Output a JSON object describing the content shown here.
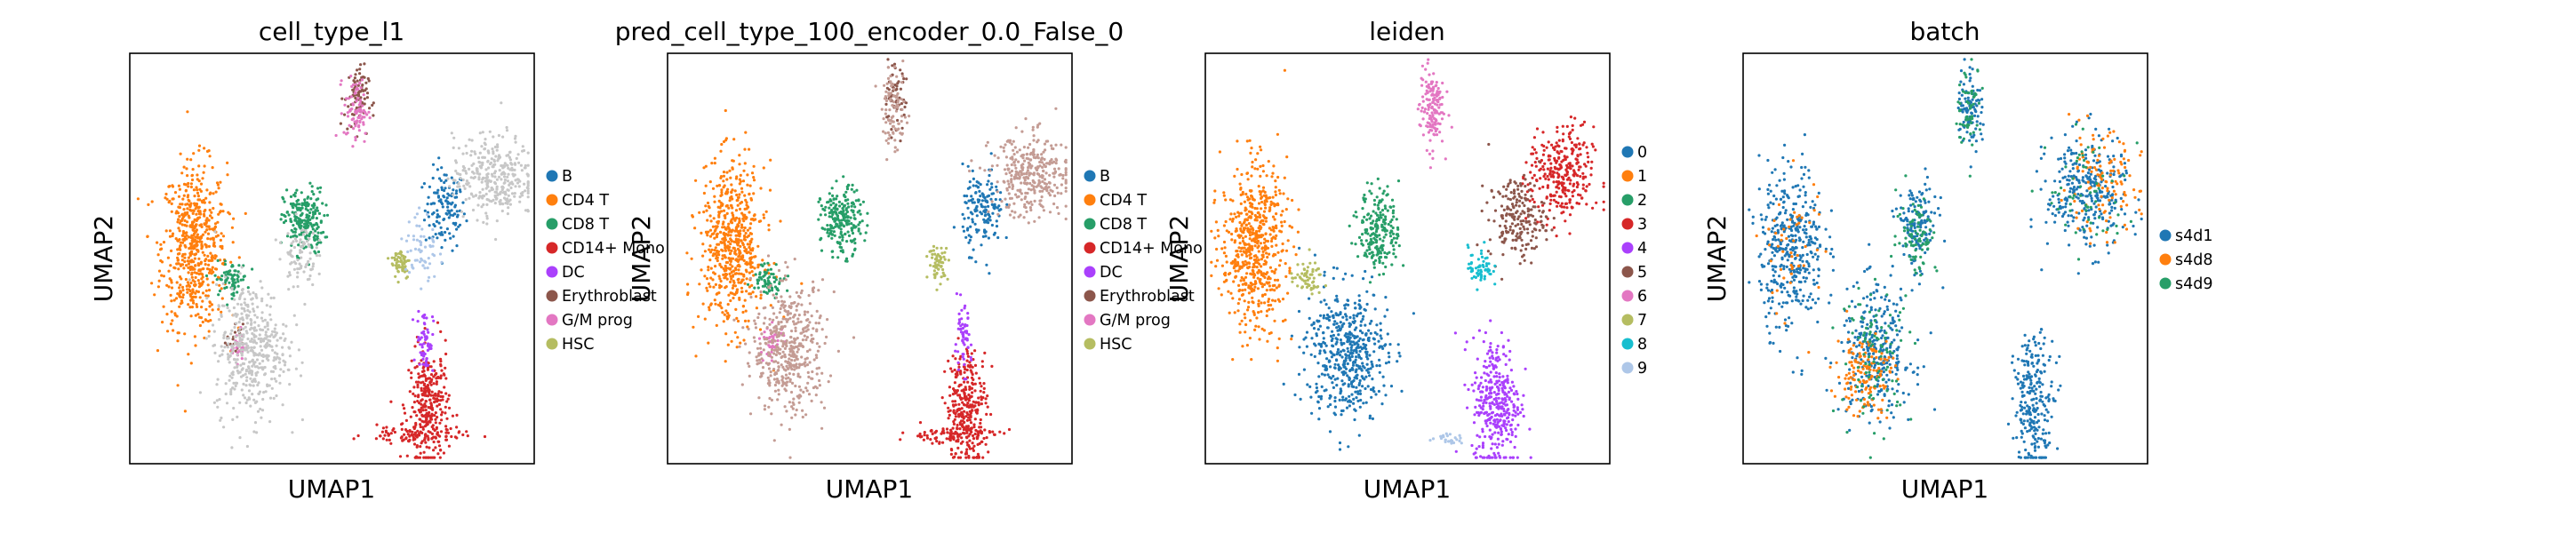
{
  "figure": {
    "panels": [
      {
        "title": "cell_type_l1",
        "xlabel": "UMAP1",
        "ylabel": "UMAP2",
        "legend": [
          {
            "label": "B",
            "color": "#1f77b4"
          },
          {
            "label": "CD4 T",
            "color": "#ff7f0e"
          },
          {
            "label": "CD8 T",
            "color": "#279e68"
          },
          {
            "label": "CD14+ Mono",
            "color": "#d62728"
          },
          {
            "label": "DC",
            "color": "#aa40fc"
          },
          {
            "label": "Erythroblast",
            "color": "#8c564b"
          },
          {
            "label": "G/M prog",
            "color": "#e377c2"
          },
          {
            "label": "HSC",
            "color": "#b5bd61"
          }
        ]
      },
      {
        "title": "pred_cell_type_100_encoder_0.0_False_0",
        "xlabel": "UMAP1",
        "ylabel": "UMAP2",
        "legend": [
          {
            "label": "B",
            "color": "#1f77b4"
          },
          {
            "label": "CD4 T",
            "color": "#ff7f0e"
          },
          {
            "label": "CD8 T",
            "color": "#279e68"
          },
          {
            "label": "CD14+ Mono",
            "color": "#d62728"
          },
          {
            "label": "DC",
            "color": "#aa40fc"
          },
          {
            "label": "Erythroblast",
            "color": "#8c564b"
          },
          {
            "label": "G/M prog",
            "color": "#e377c2"
          },
          {
            "label": "HSC",
            "color": "#b5bd61"
          }
        ]
      },
      {
        "title": "leiden",
        "xlabel": "UMAP1",
        "ylabel": "UMAP2",
        "legend": [
          {
            "label": "0",
            "color": "#1f77b4"
          },
          {
            "label": "1",
            "color": "#ff7f0e"
          },
          {
            "label": "2",
            "color": "#279e68"
          },
          {
            "label": "3",
            "color": "#d62728"
          },
          {
            "label": "4",
            "color": "#aa40fc"
          },
          {
            "label": "5",
            "color": "#8c564b"
          },
          {
            "label": "6",
            "color": "#e377c2"
          },
          {
            "label": "7",
            "color": "#b5bd61"
          },
          {
            "label": "8",
            "color": "#17becf"
          },
          {
            "label": "9",
            "color": "#aec7e8"
          }
        ]
      },
      {
        "title": "batch",
        "xlabel": "UMAP1",
        "ylabel": "UMAP2",
        "legend": [
          {
            "label": "s4d1",
            "color": "#1f77b4"
          },
          {
            "label": "s4d8",
            "color": "#ff7f0e"
          },
          {
            "label": "s4d9",
            "color": "#279e68"
          }
        ]
      }
    ]
  },
  "chart_data": [
    {
      "type": "scatter",
      "title": "cell_type_l1",
      "xlabel": "UMAP1",
      "ylabel": "UMAP2",
      "ticks": "none",
      "grid": false,
      "legend_placement": "right-outside",
      "series": [
        {
          "name": "B",
          "color": "#1f77b4",
          "clusters": [
            {
              "x": 0.78,
              "y": 0.62,
              "sx": 0.025,
              "sy": 0.05,
              "n": 130
            }
          ]
        },
        {
          "name": "CD4 T",
          "color": "#ff7f0e",
          "clusters": [
            {
              "x": 0.16,
              "y": 0.53,
              "sx": 0.04,
              "sy": 0.1,
              "n": 600
            }
          ]
        },
        {
          "name": "CD8 T",
          "color": "#279e68",
          "clusters": [
            {
              "x": 0.43,
              "y": 0.59,
              "sx": 0.025,
              "sy": 0.04,
              "n": 220
            },
            {
              "x": 0.25,
              "y": 0.45,
              "sx": 0.02,
              "sy": 0.02,
              "n": 70
            }
          ]
        },
        {
          "name": "CD14+ Mono",
          "color": "#d62728",
          "clusters": [
            {
              "x": 0.74,
              "y": 0.14,
              "sx": 0.025,
              "sy": 0.07,
              "n": 300
            },
            {
              "x": 0.7,
              "y": 0.07,
              "sx": 0.06,
              "sy": 0.01,
              "n": 90
            }
          ]
        },
        {
          "name": "DC",
          "color": "#aa40fc",
          "clusters": [
            {
              "x": 0.73,
              "y": 0.3,
              "sx": 0.01,
              "sy": 0.04,
              "n": 60
            }
          ]
        },
        {
          "name": "Erythroblast",
          "color": "#8c564b",
          "clusters": [
            {
              "x": 0.56,
              "y": 0.89,
              "sx": 0.015,
              "sy": 0.04,
              "n": 80
            },
            {
              "x": 0.26,
              "y": 0.3,
              "sx": 0.01,
              "sy": 0.02,
              "n": 20
            }
          ]
        },
        {
          "name": "G/M prog",
          "color": "#e377c2",
          "clusters": [
            {
              "x": 0.56,
              "y": 0.86,
              "sx": 0.015,
              "sy": 0.04,
              "n": 80
            },
            {
              "x": 0.27,
              "y": 0.29,
              "sx": 0.01,
              "sy": 0.02,
              "n": 30
            }
          ]
        },
        {
          "name": "HSC",
          "color": "#b5bd61",
          "clusters": [
            {
              "x": 0.67,
              "y": 0.49,
              "sx": 0.012,
              "sy": 0.02,
              "n": 60
            }
          ]
        },
        {
          "name": "",
          "color": "#c7c7c7",
          "clusters": [
            {
              "x": 0.3,
              "y": 0.28,
              "sx": 0.045,
              "sy": 0.08,
              "n": 450
            },
            {
              "x": 0.9,
              "y": 0.7,
              "sx": 0.05,
              "sy": 0.05,
              "n": 330
            },
            {
              "x": 0.42,
              "y": 0.51,
              "sx": 0.02,
              "sy": 0.04,
              "n": 80
            }
          ]
        },
        {
          "name": "",
          "color": "#aec7e8",
          "clusters": [
            {
              "x": 0.72,
              "y": 0.52,
              "sx": 0.02,
              "sy": 0.05,
              "n": 60
            }
          ]
        }
      ]
    },
    {
      "type": "scatter",
      "title": "pred_cell_type_100_encoder_0.0_False_0",
      "xlabel": "UMAP1",
      "ylabel": "UMAP2",
      "ticks": "none",
      "grid": false,
      "legend_placement": "right-outside",
      "series": [
        {
          "name": "B",
          "color": "#1f77b4",
          "clusters": [
            {
              "x": 0.78,
              "y": 0.62,
              "sx": 0.025,
              "sy": 0.05,
              "n": 150
            }
          ]
        },
        {
          "name": "CD4 T",
          "color": "#ff7f0e",
          "clusters": [
            {
              "x": 0.16,
              "y": 0.53,
              "sx": 0.04,
              "sy": 0.1,
              "n": 600
            }
          ]
        },
        {
          "name": "CD8 T",
          "color": "#279e68",
          "clusters": [
            {
              "x": 0.43,
              "y": 0.59,
              "sx": 0.025,
              "sy": 0.04,
              "n": 220
            },
            {
              "x": 0.25,
              "y": 0.45,
              "sx": 0.02,
              "sy": 0.02,
              "n": 70
            }
          ]
        },
        {
          "name": "CD14+ Mono",
          "color": "#d62728",
          "clusters": [
            {
              "x": 0.74,
              "y": 0.14,
              "sx": 0.025,
              "sy": 0.07,
              "n": 300
            },
            {
              "x": 0.7,
              "y": 0.07,
              "sx": 0.06,
              "sy": 0.01,
              "n": 90
            }
          ]
        },
        {
          "name": "DC",
          "color": "#aa40fc",
          "clusters": [
            {
              "x": 0.73,
              "y": 0.3,
              "sx": 0.01,
              "sy": 0.04,
              "n": 60
            }
          ]
        },
        {
          "name": "Erythroblast",
          "color": "#8c564b",
          "clusters": [
            {
              "x": 0.56,
              "y": 0.89,
              "sx": 0.015,
              "sy": 0.04,
              "n": 60
            }
          ]
        },
        {
          "name": "G/M prog",
          "color": "#e377c2",
          "clusters": [
            {
              "x": 0.26,
              "y": 0.3,
              "sx": 0.015,
              "sy": 0.02,
              "n": 40
            }
          ]
        },
        {
          "name": "HSC",
          "color": "#b5bd61",
          "clusters": [
            {
              "x": 0.67,
              "y": 0.49,
              "sx": 0.012,
              "sy": 0.02,
              "n": 60
            }
          ]
        },
        {
          "name": "",
          "color": "#c49c94",
          "clusters": [
            {
              "x": 0.3,
              "y": 0.28,
              "sx": 0.045,
              "sy": 0.08,
              "n": 450
            },
            {
              "x": 0.9,
              "y": 0.7,
              "sx": 0.05,
              "sy": 0.05,
              "n": 330
            },
            {
              "x": 0.56,
              "y": 0.86,
              "sx": 0.015,
              "sy": 0.05,
              "n": 90
            }
          ]
        }
      ]
    },
    {
      "type": "scatter",
      "title": "leiden",
      "xlabel": "UMAP1",
      "ylabel": "UMAP2",
      "ticks": "none",
      "grid": false,
      "legend_placement": "right-outside",
      "series": [
        {
          "name": "0",
          "color": "#1f77b4",
          "clusters": [
            {
              "x": 0.35,
              "y": 0.27,
              "sx": 0.05,
              "sy": 0.08,
              "n": 500
            }
          ]
        },
        {
          "name": "1",
          "color": "#ff7f0e",
          "clusters": [
            {
              "x": 0.12,
              "y": 0.53,
              "sx": 0.04,
              "sy": 0.1,
              "n": 600
            }
          ]
        },
        {
          "name": "2",
          "color": "#279e68",
          "clusters": [
            {
              "x": 0.43,
              "y": 0.57,
              "sx": 0.025,
              "sy": 0.05,
              "n": 220
            }
          ]
        },
        {
          "name": "3",
          "color": "#d62728",
          "clusters": [
            {
              "x": 0.88,
              "y": 0.7,
              "sx": 0.04,
              "sy": 0.06,
              "n": 300
            }
          ]
        },
        {
          "name": "4",
          "color": "#aa40fc",
          "clusters": [
            {
              "x": 0.72,
              "y": 0.15,
              "sx": 0.03,
              "sy": 0.08,
              "n": 350
            }
          ]
        },
        {
          "name": "5",
          "color": "#8c564b",
          "clusters": [
            {
              "x": 0.77,
              "y": 0.6,
              "sx": 0.035,
              "sy": 0.05,
              "n": 200
            }
          ]
        },
        {
          "name": "6",
          "color": "#e377c2",
          "clusters": [
            {
              "x": 0.56,
              "y": 0.87,
              "sx": 0.015,
              "sy": 0.05,
              "n": 150
            }
          ]
        },
        {
          "name": "7",
          "color": "#b5bd61",
          "clusters": [
            {
              "x": 0.25,
              "y": 0.45,
              "sx": 0.02,
              "sy": 0.02,
              "n": 60
            }
          ]
        },
        {
          "name": "8",
          "color": "#17becf",
          "clusters": [
            {
              "x": 0.68,
              "y": 0.48,
              "sx": 0.015,
              "sy": 0.025,
              "n": 60
            }
          ]
        },
        {
          "name": "9",
          "color": "#aec7e8",
          "clusters": [
            {
              "x": 0.6,
              "y": 0.06,
              "sx": 0.02,
              "sy": 0.006,
              "n": 25
            }
          ]
        }
      ]
    },
    {
      "type": "scatter",
      "title": "batch",
      "xlabel": "UMAP1",
      "ylabel": "UMAP2",
      "ticks": "none",
      "grid": false,
      "legend_placement": "right-outside",
      "series": [
        {
          "name": "s4d1",
          "color": "#1f77b4",
          "clusters": [
            {
              "x": 0.12,
              "y": 0.53,
              "sx": 0.04,
              "sy": 0.1,
              "n": 400
            },
            {
              "x": 0.33,
              "y": 0.27,
              "sx": 0.045,
              "sy": 0.08,
              "n": 300
            },
            {
              "x": 0.43,
              "y": 0.58,
              "sx": 0.025,
              "sy": 0.05,
              "n": 150
            },
            {
              "x": 0.85,
              "y": 0.66,
              "sx": 0.05,
              "sy": 0.07,
              "n": 300
            },
            {
              "x": 0.72,
              "y": 0.15,
              "sx": 0.025,
              "sy": 0.08,
              "n": 250
            },
            {
              "x": 0.56,
              "y": 0.87,
              "sx": 0.015,
              "sy": 0.05,
              "n": 100
            }
          ]
        },
        {
          "name": "s4d8",
          "color": "#ff7f0e",
          "clusters": [
            {
              "x": 0.3,
              "y": 0.22,
              "sx": 0.035,
              "sy": 0.05,
              "n": 150
            },
            {
              "x": 0.88,
              "y": 0.68,
              "sx": 0.05,
              "sy": 0.06,
              "n": 120
            },
            {
              "x": 0.12,
              "y": 0.53,
              "sx": 0.04,
              "sy": 0.1,
              "n": 50
            }
          ]
        },
        {
          "name": "s4d9",
          "color": "#279e68",
          "clusters": [
            {
              "x": 0.33,
              "y": 0.27,
              "sx": 0.045,
              "sy": 0.08,
              "n": 100
            },
            {
              "x": 0.43,
              "y": 0.56,
              "sx": 0.025,
              "sy": 0.05,
              "n": 80
            },
            {
              "x": 0.56,
              "y": 0.87,
              "sx": 0.015,
              "sy": 0.05,
              "n": 60
            },
            {
              "x": 0.85,
              "y": 0.66,
              "sx": 0.05,
              "sy": 0.07,
              "n": 60
            }
          ]
        }
      ]
    }
  ]
}
